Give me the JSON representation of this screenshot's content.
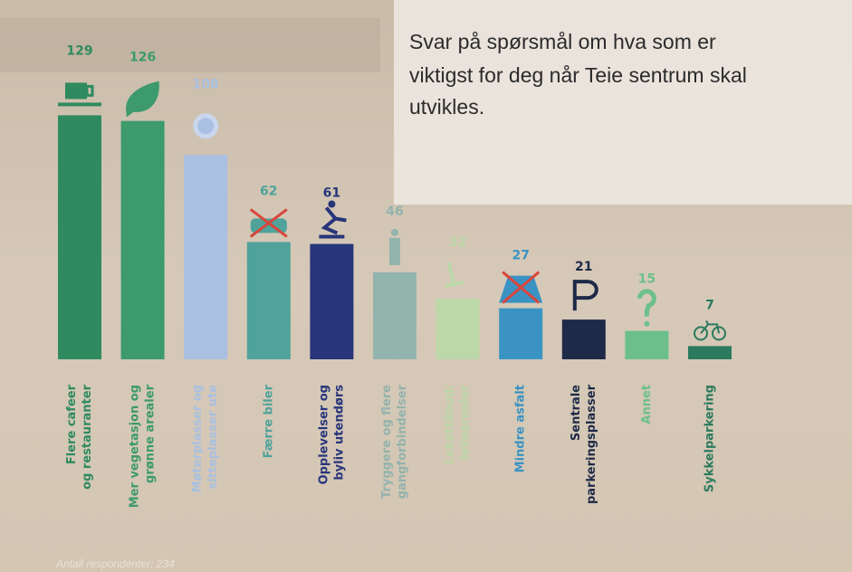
{
  "chart_data": {
    "type": "bar",
    "intro": [
      "Svar på spørsmål om hva som er",
      "viktigst for deg når Teie sentrum skal",
      "utvikles."
    ],
    "note": "Antall respondenter: 234",
    "categories": [
      [
        "Flere cafeer",
        "og restauranter"
      ],
      [
        "Mer vegetasjon og",
        "grønne arealer"
      ],
      [
        "Møterplasser og",
        "sitteplasser ute"
      ],
      [
        "Færre biler"
      ],
      [
        "Opplevelser og",
        "byliv utendørs"
      ],
      [
        "Tryggere og flere",
        "gangforbindelser"
      ],
      [
        "Lekettilbud/",
        "lekearealer"
      ],
      [
        "Mindre asfalt"
      ],
      [
        "Sentrale",
        "parkeringsplasser"
      ],
      [
        "Annet"
      ],
      [
        "Sykkelparkering"
      ]
    ],
    "values": [
      129,
      126,
      108,
      62,
      61,
      46,
      32,
      27,
      21,
      15,
      7
    ],
    "colors": [
      "#2f8a5f",
      "#3c9a6c",
      "#a9c0e2",
      "#4fa39b",
      "#27357a",
      "#93b3ad",
      "#bcd7a8",
      "#3b93c4",
      "#1e2a47",
      "#6cbf8a",
      "#2b7a5e"
    ]
  }
}
